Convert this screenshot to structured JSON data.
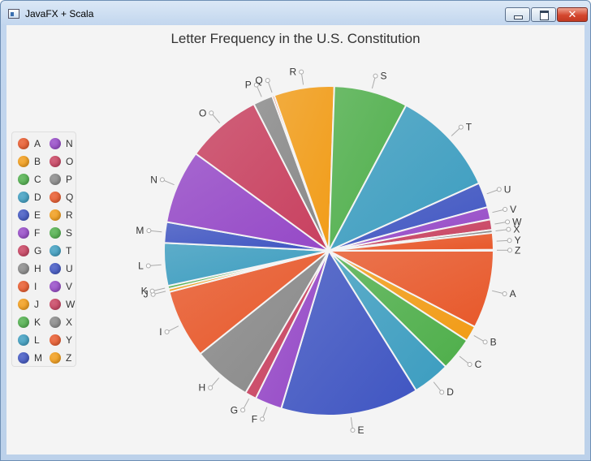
{
  "window": {
    "title": "JavaFX + Scala"
  },
  "colors": {
    "accent": [
      "#e8582a",
      "#f29c17",
      "#4faf4b",
      "#3c9dc0",
      "#3f55c2",
      "#9548c7",
      "#c8405f",
      "#888888"
    ],
    "legend_bg": "#f2f2f2",
    "plot_bg": "#f4f4f4"
  },
  "chart_data": {
    "type": "pie",
    "title": "Letter Frequency in the U.S. Constitution",
    "legend_position": "left",
    "start_angle_deg": 0,
    "direction": "clockwise",
    "slices": [
      {
        "label": "A",
        "value": 7.5,
        "color": "#e8582a"
      },
      {
        "label": "B",
        "value": 1.5,
        "color": "#f29c17"
      },
      {
        "label": "C",
        "value": 3.2,
        "color": "#4faf4b"
      },
      {
        "label": "D",
        "value": 3.6,
        "color": "#3c9dc0"
      },
      {
        "label": "E",
        "value": 13.3,
        "color": "#3f55c2"
      },
      {
        "label": "F",
        "value": 2.6,
        "color": "#9548c7"
      },
      {
        "label": "G",
        "value": 1.1,
        "color": "#c8405f"
      },
      {
        "label": "H",
        "value": 5.7,
        "color": "#888888"
      },
      {
        "label": "I",
        "value": 6.6,
        "color": "#e8582a"
      },
      {
        "label": "J",
        "value": 0.3,
        "color": "#f29c17"
      },
      {
        "label": "K",
        "value": 0.3,
        "color": "#4faf4b"
      },
      {
        "label": "L",
        "value": 4.1,
        "color": "#3c9dc0"
      },
      {
        "label": "M",
        "value": 2.0,
        "color": "#3f55c2"
      },
      {
        "label": "N",
        "value": 7.1,
        "color": "#9548c7"
      },
      {
        "label": "O",
        "value": 7.3,
        "color": "#c8405f"
      },
      {
        "label": "P",
        "value": 1.9,
        "color": "#888888"
      },
      {
        "label": "Q",
        "value": 0.2,
        "color": "#e8582a"
      },
      {
        "label": "R",
        "value": 5.8,
        "color": "#f29c17"
      },
      {
        "label": "S",
        "value": 7.1,
        "color": "#4faf4b"
      },
      {
        "label": "T",
        "value": 10.3,
        "color": "#3c9dc0"
      },
      {
        "label": "U",
        "value": 2.4,
        "color": "#3f55c2"
      },
      {
        "label": "V",
        "value": 1.2,
        "color": "#9548c7"
      },
      {
        "label": "W",
        "value": 1.0,
        "color": "#c8405f"
      },
      {
        "label": "X",
        "value": 0.3,
        "color": "#888888"
      },
      {
        "label": "Y",
        "value": 1.6,
        "color": "#e8582a"
      },
      {
        "label": "Z",
        "value": 0.1,
        "color": "#f29c17"
      }
    ]
  }
}
